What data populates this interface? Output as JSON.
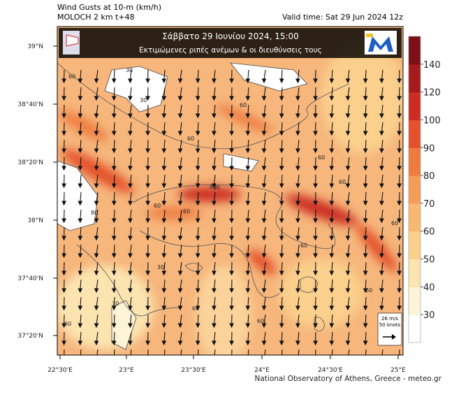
{
  "header": {
    "title_line1": "Wind Gusts at 10-m (km/h)",
    "title_line2": "MOLOCH 2 km t+48",
    "valid_time": "Valid time: Sat 29 Jun 2024 12z"
  },
  "banner": {
    "line1": "Σάββατο  29 Ιουνίου 2024, 15:00",
    "line2": "Εκτιμώμενες ριπές ανέμων & οι διευθύνσεις τους"
  },
  "map": {
    "lat_labels": [
      "39°N",
      "38°40'N",
      "38°20'N",
      "38°N",
      "37°40'N",
      "37°20'N"
    ],
    "lon_labels": [
      "22°30'E",
      "23°E",
      "23°30'E",
      "24°E",
      "24°30'E",
      "25°E"
    ],
    "contour_labels": [
      30,
      30,
      60,
      60,
      60,
      60,
      80,
      60,
      60,
      30,
      60,
      60,
      60,
      60,
      60,
      30,
      60,
      60,
      80,
      60
    ]
  },
  "legend": {
    "levels": [
      30,
      40,
      50,
      60,
      70,
      80,
      90,
      100,
      120,
      140
    ],
    "colors": [
      "#ffffff",
      "#fdf3d6",
      "#fce4b0",
      "#fbcf8c",
      "#f8b873",
      "#f49c58",
      "#ef7c3f",
      "#e4512c",
      "#cc2d22",
      "#a51a1c",
      "#7e0f17"
    ]
  },
  "scale_box": {
    "line1": "26 m/s",
    "line2": "50 knots"
  },
  "footer": "National Observatory of Athens, Greece - meteo.gr"
}
